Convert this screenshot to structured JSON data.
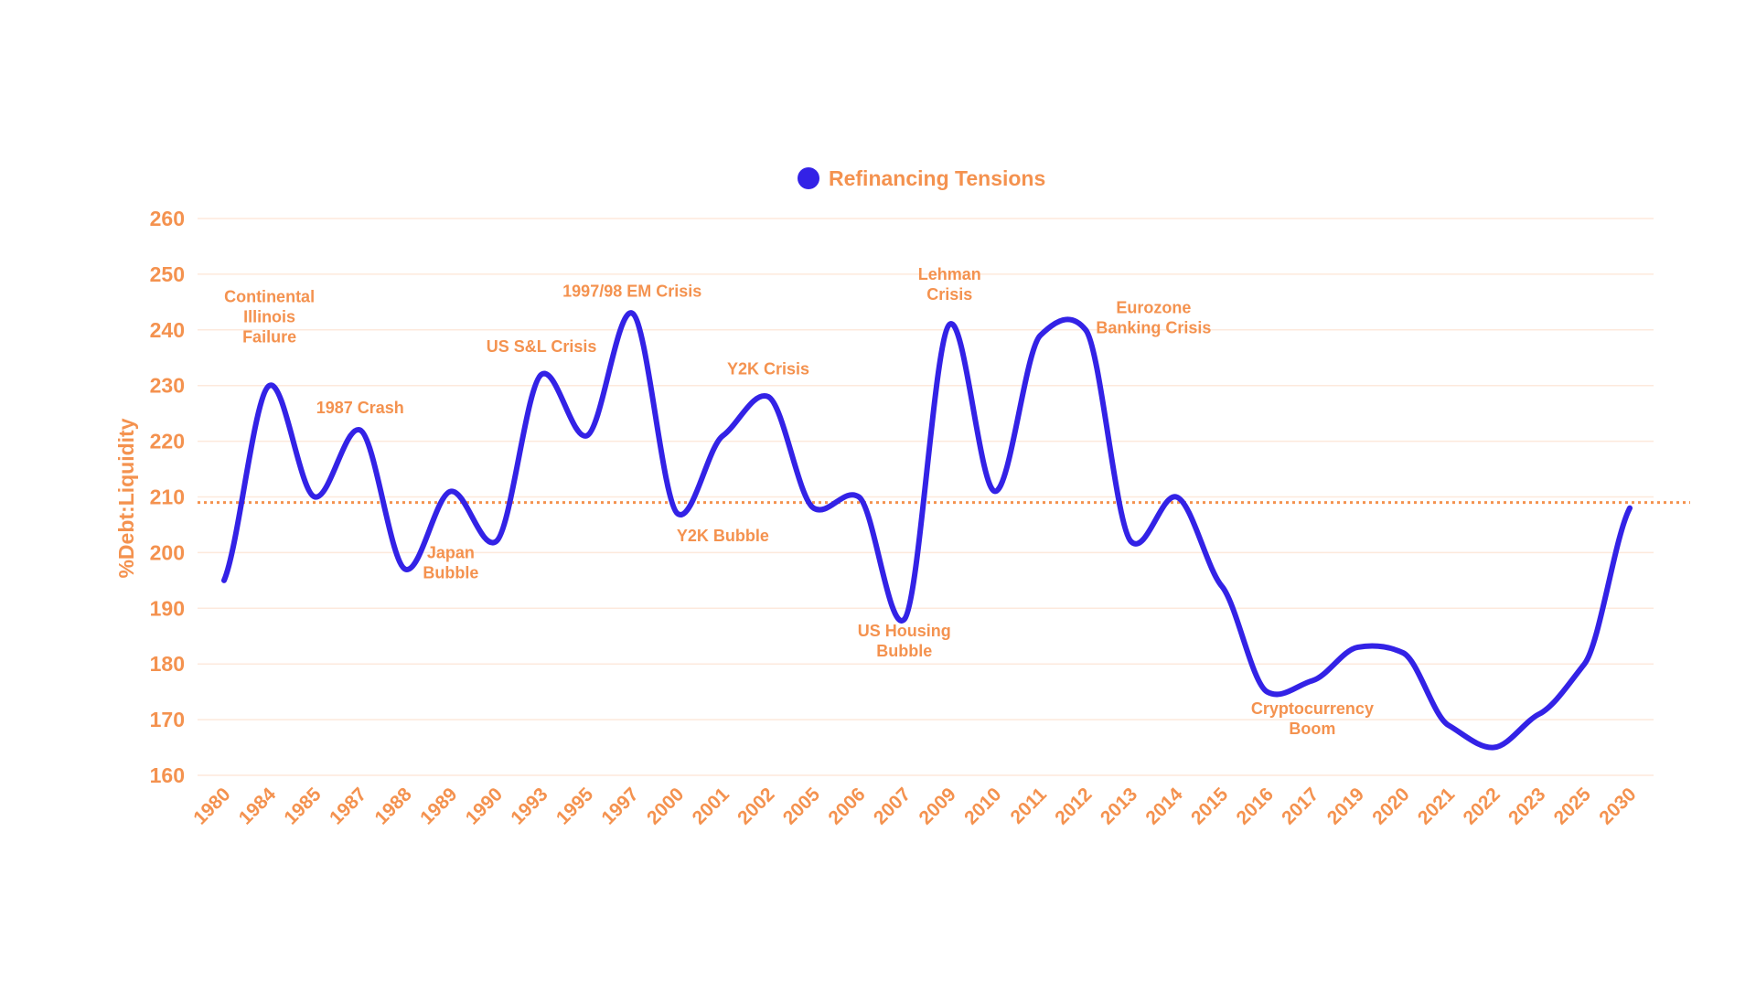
{
  "colors": {
    "line": "#3322e6",
    "accent": "#f4924f",
    "grid": "#fde9dc",
    "background": "#ffffff"
  },
  "chart_data": {
    "type": "line",
    "title": "",
    "xlabel": "",
    "ylabel": "%Debt:Liquidity",
    "ylim": [
      160,
      260
    ],
    "yticks": [
      160,
      170,
      180,
      190,
      200,
      210,
      220,
      230,
      240,
      250,
      260
    ],
    "grid": true,
    "legend_position": "top-center",
    "categories": [
      "1980",
      "1984",
      "1985",
      "1987",
      "1988",
      "1989",
      "1990",
      "1993",
      "1995",
      "1997",
      "2000",
      "2001",
      "2002",
      "2005",
      "2006",
      "2007",
      "2009",
      "2010",
      "2011",
      "2012",
      "2013",
      "2014",
      "2015",
      "2016",
      "2017",
      "2019",
      "2020",
      "2021",
      "2022",
      "2023",
      "2025",
      "2030"
    ],
    "series": [
      {
        "name": "Refinancing Tensions",
        "values": [
          195,
          230,
          210,
          222,
          197,
          211,
          202,
          232,
          221,
          243,
          207,
          221,
          228,
          208,
          210,
          188,
          241,
          211,
          239,
          240,
          202,
          210,
          194,
          175,
          177,
          183,
          182,
          169,
          165,
          171,
          180,
          208
        ]
      }
    ],
    "reference_line": {
      "value": 209,
      "style": "dotted"
    },
    "annotations": [
      {
        "lines": [
          "Continental",
          "Illinois",
          "Failure"
        ],
        "category": "1984",
        "value": 245
      },
      {
        "lines": [
          "1987 Crash"
        ],
        "category": "1987",
        "value": 225
      },
      {
        "lines": [
          "Japan",
          "Bubble"
        ],
        "category": "1989",
        "value": 199
      },
      {
        "lines": [
          "US S&L Crisis"
        ],
        "category": "1993",
        "value": 236
      },
      {
        "lines": [
          "1997/98 EM Crisis"
        ],
        "category": "1997",
        "value": 246
      },
      {
        "lines": [
          "Y2K Bubble"
        ],
        "category": "2001",
        "value": 202
      },
      {
        "lines": [
          "Y2K Crisis"
        ],
        "category": "2002",
        "value": 232
      },
      {
        "lines": [
          "US Housing",
          "Bubble"
        ],
        "category": "2007",
        "value": 185
      },
      {
        "lines": [
          "Lehman",
          "Crisis"
        ],
        "category": "2009",
        "value": 249
      },
      {
        "lines": [
          "Eurozone",
          "Banking Crisis"
        ],
        "category": "2013.5",
        "value": 243
      },
      {
        "lines": [
          "Cryptocurrency",
          "Boom"
        ],
        "category": "2017",
        "value": 171
      }
    ]
  }
}
